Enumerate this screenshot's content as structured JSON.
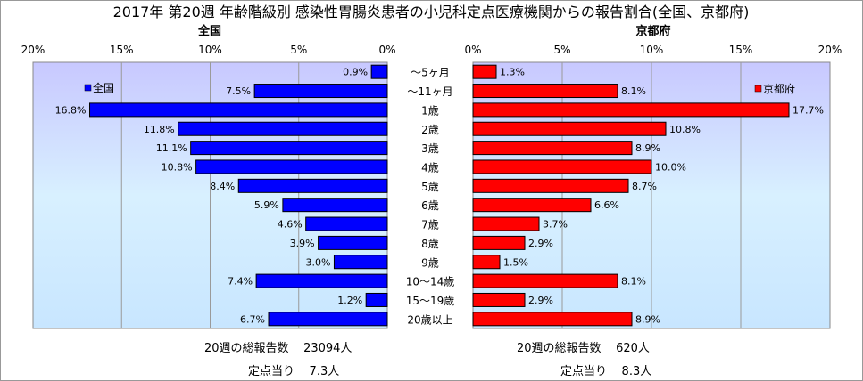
{
  "chart_data": {
    "type": "bar",
    "title": "2017年 第20週 年齢階級別 感染性胃腸炎患者の小児科定点医療機関からの報告割合(全国、京都府)",
    "categories": [
      "～5ヶ月",
      "～11ヶ月",
      "1歳",
      "2歳",
      "3歳",
      "4歳",
      "5歳",
      "6歳",
      "7歳",
      "8歳",
      "9歳",
      "10～14歳",
      "15～19歳",
      "20歳以上"
    ],
    "x_ticks": [
      "20%",
      "15%",
      "10%",
      "5%",
      "0%"
    ],
    "x_ticks_right": [
      "0%",
      "5%",
      "10%",
      "15%",
      "20%"
    ],
    "xlim": [
      0,
      20
    ],
    "grid": true,
    "series": [
      {
        "name": "全国",
        "panel_title": "全国",
        "color": "#0000ff",
        "values": [
          0.9,
          7.5,
          16.8,
          11.8,
          11.1,
          10.8,
          8.4,
          5.9,
          4.6,
          3.9,
          3.0,
          7.4,
          1.2,
          6.7
        ],
        "labels": [
          "0.9%",
          "7.5%",
          "16.8%",
          "11.8%",
          "11.1%",
          "10.8%",
          "8.4%",
          "5.9%",
          "4.6%",
          "3.9%",
          "3.0%",
          "7.4%",
          "1.2%",
          "6.7%"
        ]
      },
      {
        "name": "京都府",
        "panel_title": "京都府",
        "color": "#ff0000",
        "values": [
          1.3,
          8.1,
          17.7,
          10.8,
          8.9,
          10.0,
          8.7,
          6.6,
          3.7,
          2.9,
          1.5,
          8.1,
          2.9,
          8.9
        ],
        "labels": [
          "1.3%",
          "8.1%",
          "17.7%",
          "10.8%",
          "8.9%",
          "10.0%",
          "8.7%",
          "6.6%",
          "3.7%",
          "2.9%",
          "1.5%",
          "8.1%",
          "2.9%",
          "8.9%"
        ]
      }
    ]
  },
  "footer": {
    "national": {
      "report_label": "20週の総報告数",
      "report_value": "23094人",
      "per_site_label": "定点当り",
      "per_site_value": "7.3人"
    },
    "kyoto": {
      "report_label": "20週の総報告数",
      "report_value": "620人",
      "per_site_label": "定点当り",
      "per_site_value": "8.3人"
    }
  }
}
